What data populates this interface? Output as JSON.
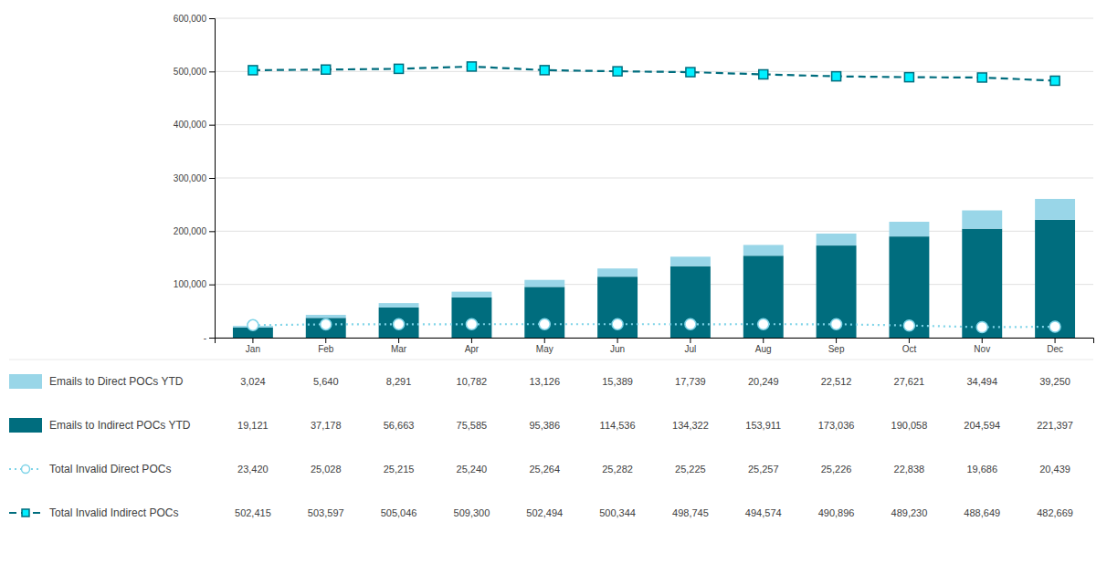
{
  "chart_data": {
    "type": "bar",
    "stacked": true,
    "grid": true,
    "legend": "bottom",
    "data_labels": true,
    "categories": [
      "Jan",
      "Feb",
      "Mar",
      "Apr",
      "May",
      "Jun",
      "Jul",
      "Aug",
      "Sep",
      "Oct",
      "Nov",
      "Dec"
    ],
    "ylim": [
      0,
      600000
    ],
    "yticks": [
      {
        "value": 0,
        "label": "-"
      },
      {
        "value": 100000,
        "label": "100,000"
      },
      {
        "value": 200000,
        "label": "200,000"
      },
      {
        "value": 300000,
        "label": "300,000"
      },
      {
        "value": 400000,
        "label": "400,000"
      },
      {
        "value": 500000,
        "label": "500,000"
      },
      {
        "value": 600000,
        "label": "600,000"
      }
    ],
    "series": [
      {
        "name": "Emails to Direct POCs YTD",
        "type": "bar",
        "color": "#99d6e8",
        "values": [
          3024,
          5640,
          8291,
          10782,
          13126,
          15389,
          17739,
          20249,
          22512,
          27621,
          34494,
          39250
        ],
        "value_labels": [
          "3,024",
          "5,640",
          "8,291",
          "10,782",
          "13,126",
          "15,389",
          "17,739",
          "20,249",
          "22,512",
          "27,621",
          "34,494",
          "39,250"
        ]
      },
      {
        "name": "Emails to Indirect POCs YTD",
        "type": "bar",
        "color": "#006d7e",
        "values": [
          19121,
          37178,
          56663,
          75585,
          95386,
          114536,
          134322,
          153911,
          173036,
          190058,
          204594,
          221397
        ],
        "value_labels": [
          "19,121",
          "37,178",
          "56,663",
          "75,585",
          "95,386",
          "114,536",
          "134,322",
          "153,911",
          "173,036",
          "190,058",
          "204,594",
          "221,397"
        ]
      },
      {
        "name": "Total Invalid Direct POCs",
        "type": "line",
        "color": "#7fd4e8",
        "marker": "circle",
        "line_style": "dotted",
        "values": [
          23420,
          25028,
          25215,
          25240,
          25264,
          25282,
          25225,
          25257,
          25226,
          22838,
          19686,
          20439
        ],
        "value_labels": [
          "23,420",
          "25,028",
          "25,215",
          "25,240",
          "25,264",
          "25,282",
          "25,225",
          "25,257",
          "25,226",
          "22,838",
          "19,686",
          "20,439"
        ]
      },
      {
        "name": "Total Invalid Indirect POCs",
        "type": "line",
        "color": "#006d7e",
        "marker": "square",
        "line_style": "dashed",
        "values": [
          502415,
          503597,
          505046,
          509300,
          502494,
          500344,
          498745,
          494574,
          490896,
          489230,
          488649,
          482669
        ],
        "value_labels": [
          "502,415",
          "503,597",
          "505,046",
          "509,300",
          "502,494",
          "500,344",
          "498,745",
          "494,574",
          "490,896",
          "489,230",
          "488,649",
          "482,669"
        ]
      }
    ]
  }
}
